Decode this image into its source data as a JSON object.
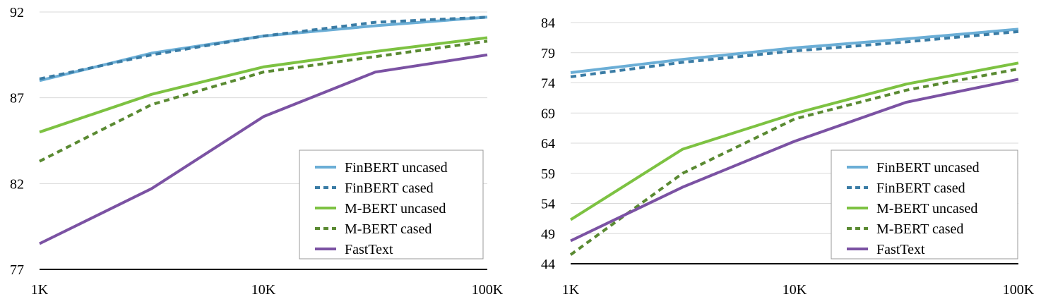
{
  "chart_data": [
    {
      "type": "line",
      "xscale": "log",
      "x": [
        1000,
        3162,
        10000,
        31623,
        100000
      ],
      "xticks": [
        "1K",
        "10K",
        "100K"
      ],
      "xtick_values": [
        1000,
        10000,
        100000
      ],
      "yticks": [
        "77",
        "82",
        "87",
        "92"
      ],
      "ylim": [
        77,
        92
      ],
      "grid": true,
      "legend": "bottom-right",
      "series": [
        {
          "name": "FinBERT uncased",
          "style": "solid",
          "color": "#6baed6",
          "values": [
            88.0,
            89.6,
            90.6,
            91.2,
            91.7
          ]
        },
        {
          "name": "FinBERT cased",
          "style": "dashed",
          "color": "#3a7ca5",
          "values": [
            88.1,
            89.5,
            90.6,
            91.4,
            91.7
          ]
        },
        {
          "name": "M-BERT uncased",
          "style": "solid",
          "color": "#7dc242",
          "values": [
            85.0,
            87.2,
            88.8,
            89.7,
            90.5
          ]
        },
        {
          "name": "M-BERT cased",
          "style": "dashed",
          "color": "#5a8a32",
          "values": [
            83.3,
            86.6,
            88.5,
            89.4,
            90.3
          ]
        },
        {
          "name": "FastText",
          "style": "solid",
          "color": "#7b52a3",
          "values": [
            78.5,
            81.7,
            85.9,
            88.5,
            89.5
          ]
        }
      ]
    },
    {
      "type": "line",
      "xscale": "log",
      "x": [
        1000,
        3162,
        10000,
        31623,
        100000
      ],
      "xticks": [
        "1K",
        "10K",
        "100K"
      ],
      "xtick_values": [
        1000,
        10000,
        100000
      ],
      "yticks": [
        "44",
        "49",
        "54",
        "59",
        "64",
        "69",
        "74",
        "79",
        "84"
      ],
      "ylim": [
        44,
        86
      ],
      "grid": true,
      "legend": "bottom-right",
      "series": [
        {
          "name": "FinBERT uncased",
          "style": "solid",
          "color": "#6baed6",
          "values": [
            75.7,
            77.9,
            79.8,
            81.3,
            82.9
          ]
        },
        {
          "name": "FinBERT cased",
          "style": "dashed",
          "color": "#3a7ca5",
          "values": [
            75.0,
            77.4,
            79.3,
            80.8,
            82.5
          ]
        },
        {
          "name": "M-BERT uncased",
          "style": "solid",
          "color": "#7dc242",
          "values": [
            51.3,
            63.0,
            68.9,
            73.8,
            77.3
          ]
        },
        {
          "name": "M-BERT cased",
          "style": "dashed",
          "color": "#5a8a32",
          "values": [
            45.5,
            59.0,
            68.0,
            72.8,
            76.3
          ]
        },
        {
          "name": "FastText",
          "style": "solid",
          "color": "#7b52a3",
          "values": [
            47.8,
            56.7,
            64.3,
            70.8,
            74.6
          ]
        }
      ]
    }
  ]
}
